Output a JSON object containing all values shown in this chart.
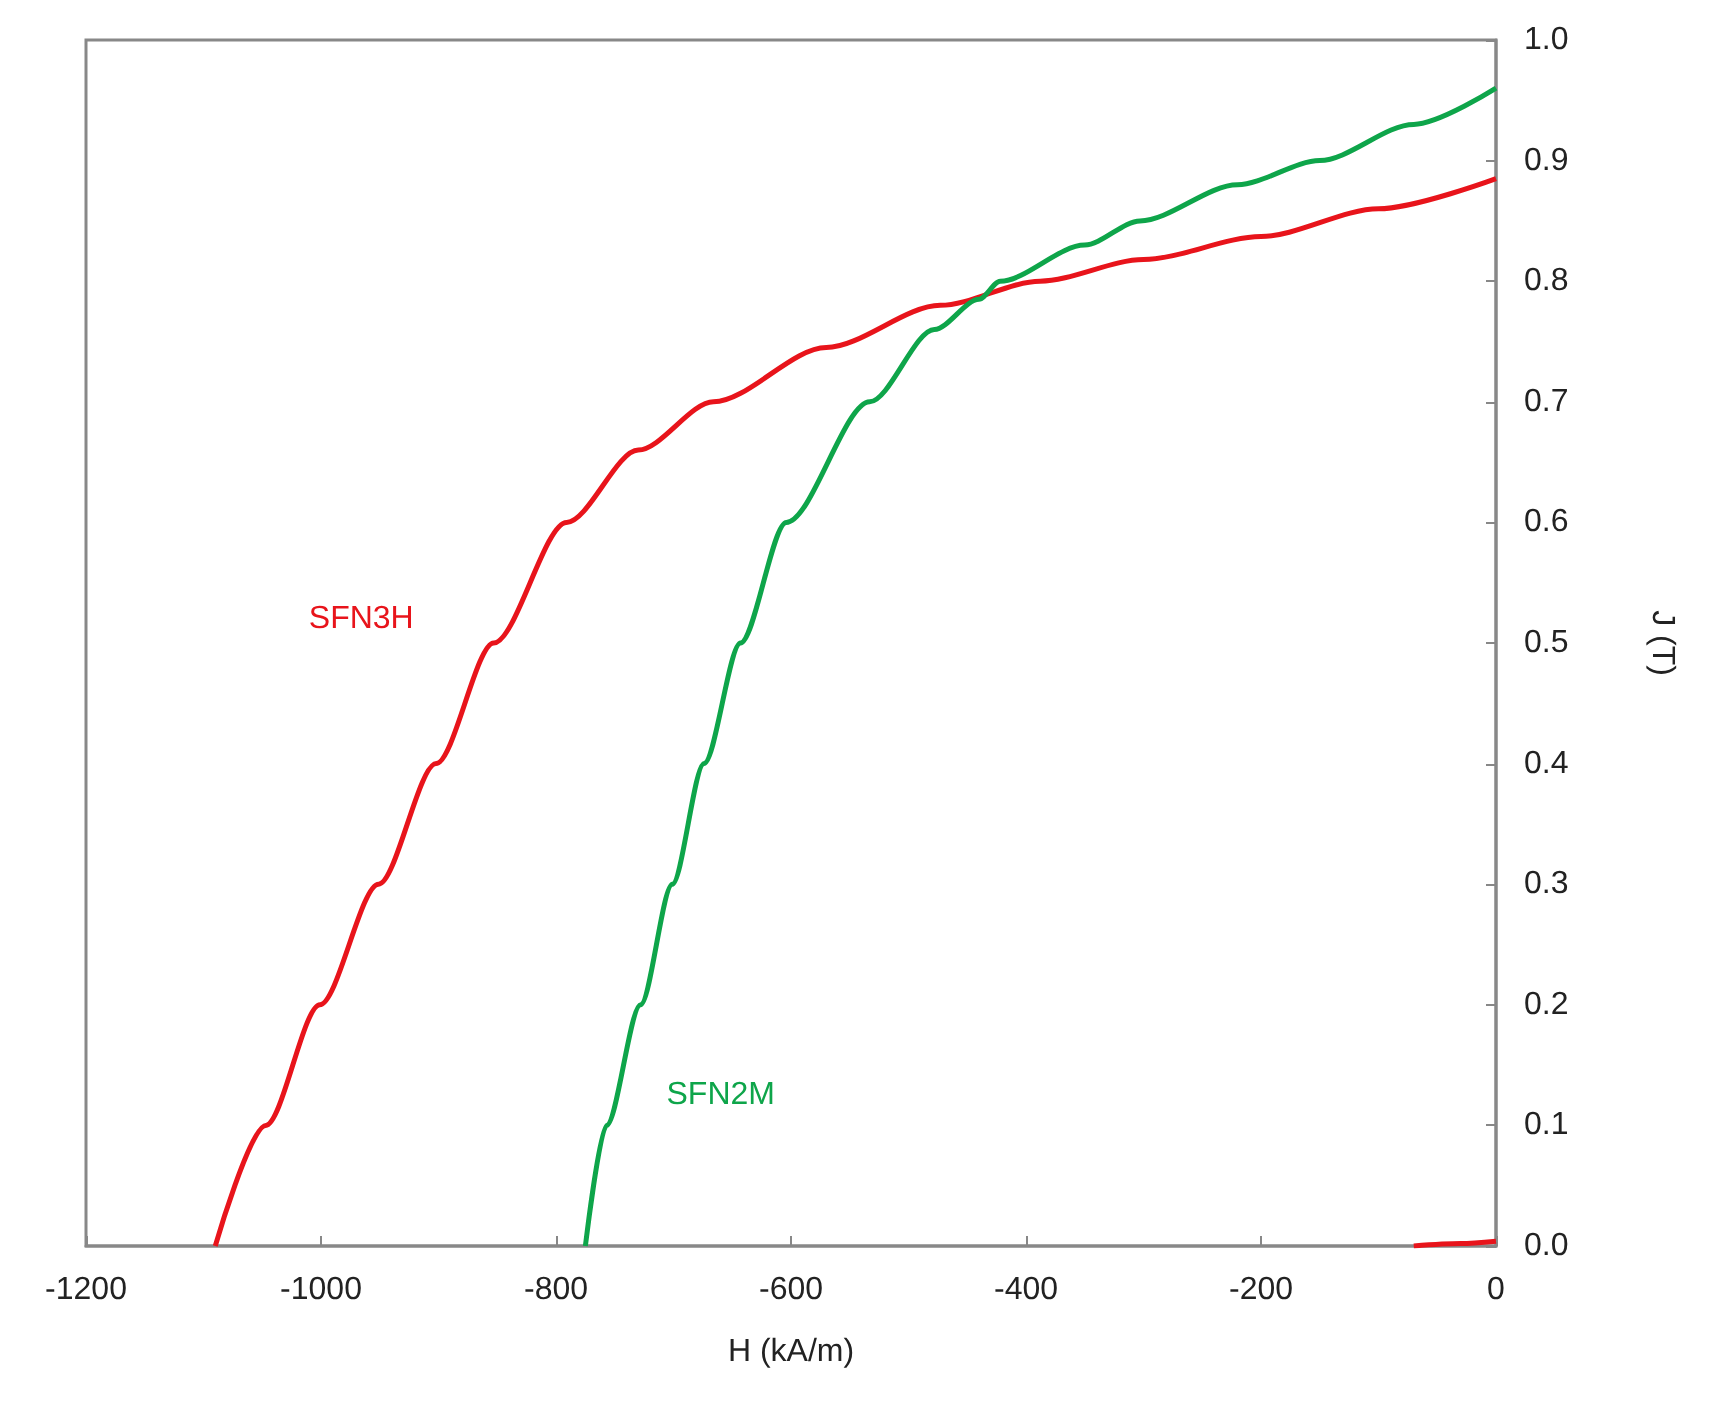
{
  "chart_data": {
    "type": "line",
    "xlabel": "H (kA/m)",
    "ylabel": "J (T)",
    "xlim": [
      -1200,
      0
    ],
    "xticks": [
      -1200,
      -1000,
      -800,
      -600,
      -400,
      -200,
      0
    ],
    "ylim": [
      0,
      1
    ],
    "yticks": [
      {
        "value": 0,
        "label": "0.0"
      },
      0.1,
      0.2,
      0.3,
      0.4,
      0.5,
      0.6,
      0.7,
      0.8,
      0.9,
      {
        "value": 1,
        "label": "1.0"
      }
    ],
    "grid": false,
    "legend": false,
    "marker": "none",
    "line_style": "solid",
    "series": [
      {
        "name": "SFN3H",
        "color": "#e8141b",
        "x": [
          -1090,
          -1047,
          -1001,
          -951,
          -902,
          -853,
          -791,
          -730,
          -666,
          -570,
          -473,
          -388,
          -300,
          -200,
          -100,
          0
        ],
        "values": [
          0,
          0.1,
          0.2,
          0.3,
          0.4,
          0.5,
          0.6,
          0.66,
          0.7,
          0.745,
          0.78,
          0.8,
          0.818,
          0.837,
          0.86,
          0.885
        ]
      },
      {
        "color": "#e8141b",
        "x": [
          -70,
          -30,
          0
        ],
        "values": [
          0,
          0.002,
          0.004
        ]
      },
      {
        "name": "SFN2M",
        "color": "#0ea54a",
        "x": [
          -775,
          -757,
          -728,
          -701,
          -674,
          -643,
          -604,
          -533,
          -478,
          -440,
          -422,
          -350,
          -303,
          -220,
          -150,
          -70,
          0
        ],
        "values": [
          0,
          0.1,
          0.2,
          0.3,
          0.4,
          0.5,
          0.6,
          0.7,
          0.76,
          0.785,
          0.8,
          0.83,
          0.85,
          0.88,
          0.9,
          0.93,
          0.96
        ]
      }
    ]
  }
}
